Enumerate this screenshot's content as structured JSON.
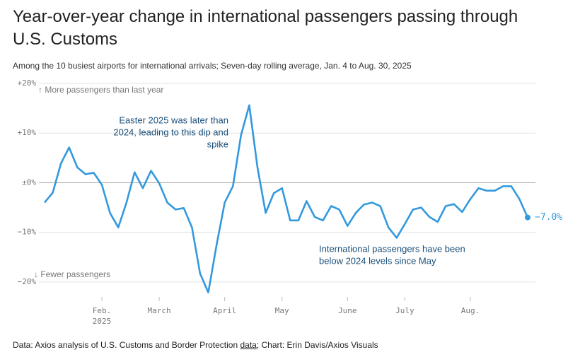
{
  "chart_data": {
    "type": "line",
    "title": "Year-over-year change in international passengers passing through U.S. Customs",
    "subtitle": "Among the 10 busiest airports for international arrivals; Seven-day rolling average, Jan. 4 to Aug. 30, 2025",
    "categories": [
      null,
      null,
      null,
      null,
      null,
      null,
      null,
      "Feb. 2025",
      null,
      null,
      null,
      null,
      null,
      null,
      "March",
      null,
      null,
      null,
      null,
      null,
      null,
      null,
      "April",
      null,
      null,
      null,
      null,
      null,
      null,
      "May",
      null,
      null,
      null,
      null,
      null,
      null,
      null,
      "June",
      null,
      null,
      null,
      null,
      null,
      null,
      "July",
      null,
      null,
      null,
      null,
      null,
      null,
      null,
      "Aug.",
      null,
      null,
      null,
      null,
      null,
      null,
      null
    ],
    "series": [
      {
        "color": "#3399dd",
        "values": [
          -4.0,
          -2.0,
          3.9,
          7.1,
          3.1,
          1.7,
          2.0,
          -0.4,
          -6.1,
          -9.0,
          -4.0,
          2.1,
          -1.1,
          2.4,
          -0.1,
          -4.0,
          -5.4,
          -5.1,
          -9.0,
          -18.3,
          -22.1,
          -12.6,
          -4.0,
          -0.7,
          9.6,
          15.6,
          3.1,
          -6.1,
          -2.1,
          -1.1,
          -7.6,
          -7.6,
          -3.7,
          -6.9,
          -7.6,
          -4.7,
          -5.4,
          -8.7,
          -6.1,
          -4.4,
          -4.0,
          -4.7,
          -9.0,
          -11.1,
          -8.3,
          -5.4,
          -5.0,
          -6.9,
          -7.9,
          -4.7,
          -4.3,
          -5.9,
          -3.3,
          -1.1,
          -1.6,
          -1.6,
          -0.7,
          -0.7,
          -3.3,
          -7.0
        ],
        "value_labels": [
          null,
          null,
          null,
          null,
          null,
          null,
          null,
          null,
          null,
          null,
          null,
          null,
          null,
          null,
          null,
          null,
          null,
          null,
          null,
          null,
          null,
          null,
          null,
          null,
          null,
          null,
          null,
          null,
          null,
          null,
          null,
          null,
          null,
          null,
          null,
          null,
          null,
          null,
          null,
          null,
          null,
          null,
          null,
          null,
          null,
          null,
          null,
          null,
          null,
          null,
          null,
          null,
          null,
          null,
          null,
          null,
          null,
          null,
          null,
          "−7.0%"
        ]
      }
    ],
    "ylim": [
      -23,
      20
    ],
    "yticks": [
      {
        "value": 20,
        "label": "+20%"
      },
      {
        "value": 10,
        "label": "+10%"
      },
      {
        "value": 0,
        "label": "±0%"
      },
      {
        "value": -10,
        "label": "−10%"
      },
      {
        "value": -20,
        "label": "−20%"
      }
    ],
    "grid": true,
    "annotations": [
      {
        "lines": [
          "↑ More passengers than last year"
        ]
      },
      {
        "lines": [
          "↓ Fewer passengers"
        ]
      },
      {
        "lines": [
          "Easter 2025 was later than",
          "2024, leading to this dip and",
          "spike"
        ]
      },
      {
        "lines": [
          "International passengers have been",
          "below 2024 levels since May"
        ]
      }
    ],
    "source": {
      "prefix": "Data: Axios analysis of U.S. Customs and Border Protection ",
      "link": "data",
      "suffix": "; Chart: Erin Davis/Axios Visuals"
    }
  }
}
